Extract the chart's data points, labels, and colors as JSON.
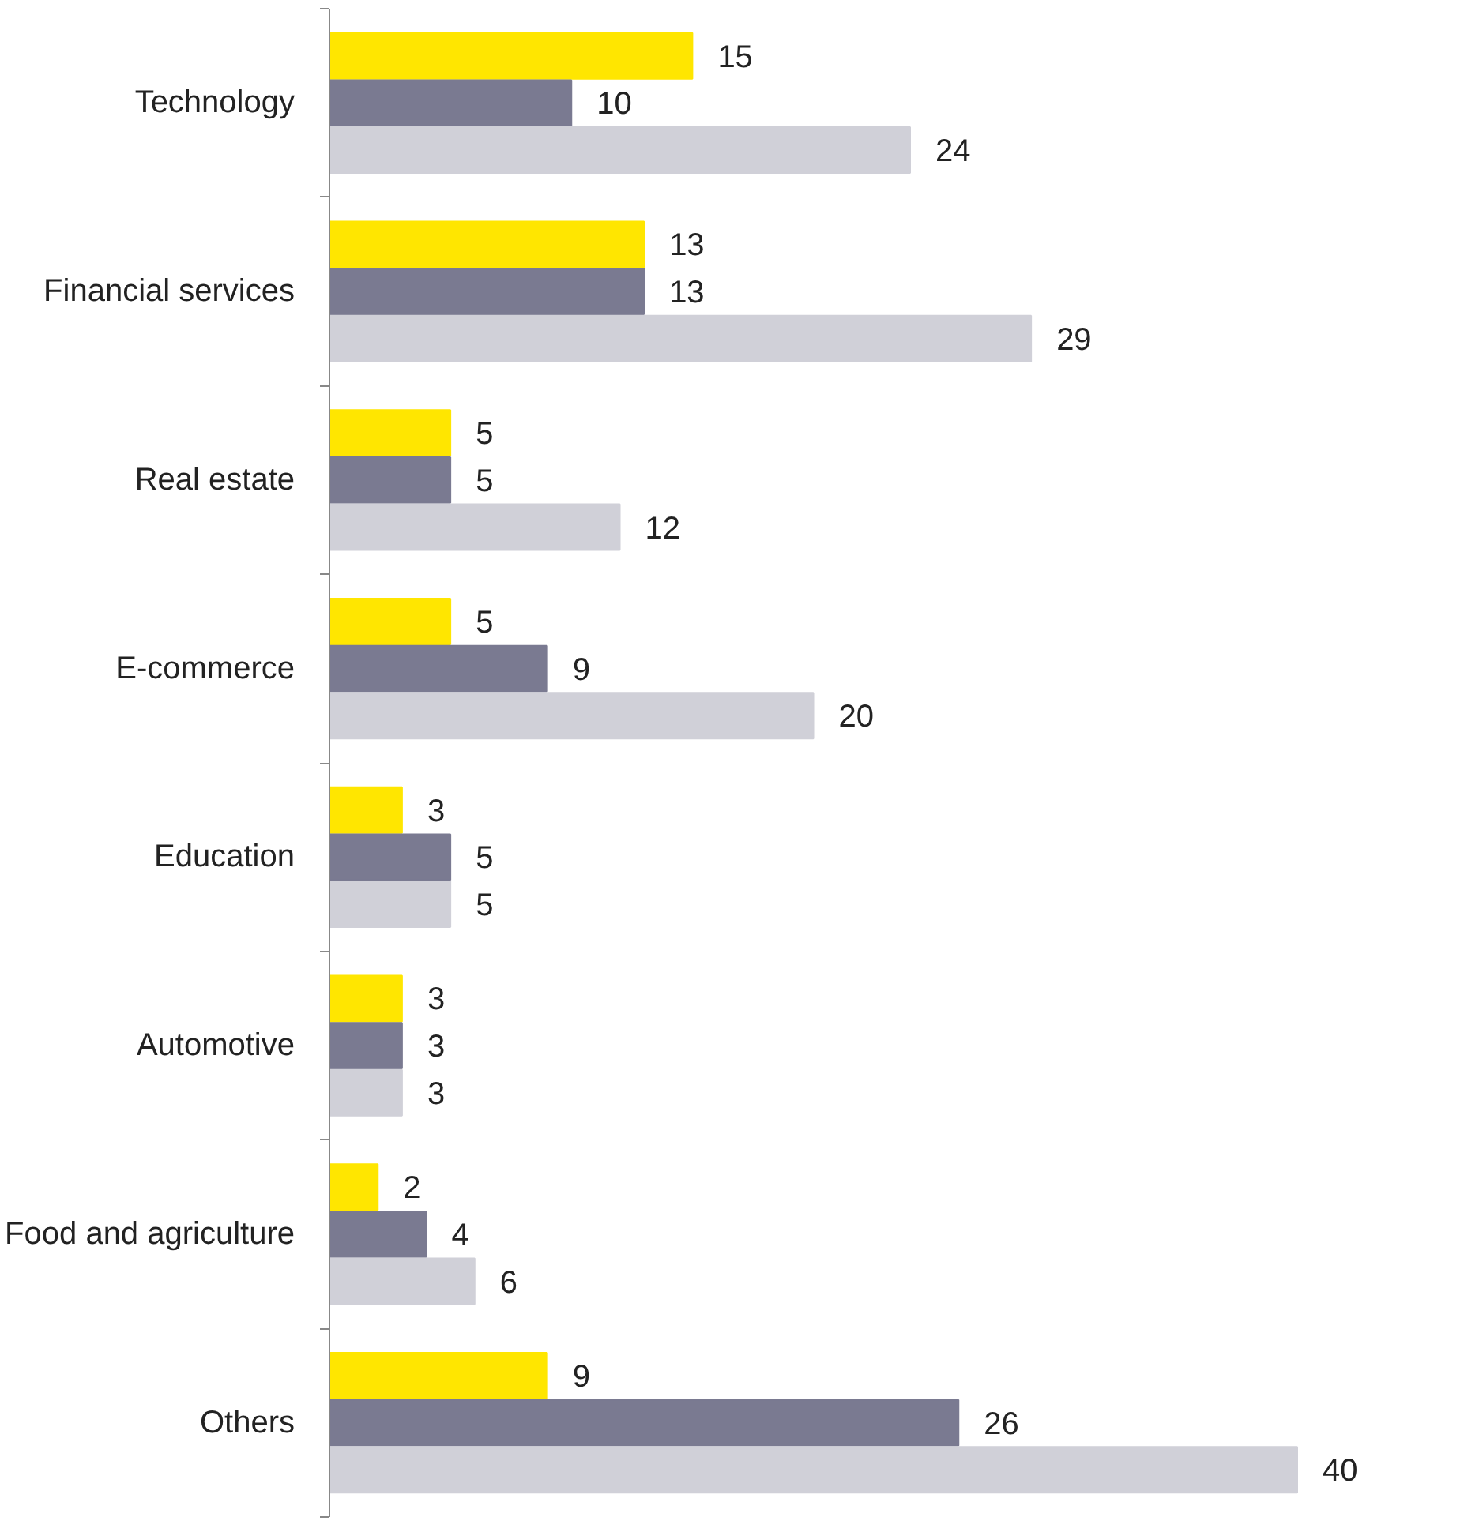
{
  "chart_data": {
    "type": "bar",
    "orientation": "horizontal",
    "data_labels": true,
    "categories": [
      "Technology",
      "Financial services",
      "Real estate",
      "E-commerce",
      "Education",
      "Automotive",
      "Food and agriculture",
      "Others"
    ],
    "series": [
      {
        "color": "#ffe600",
        "values": [
          15,
          13,
          5,
          5,
          3,
          3,
          2,
          9
        ]
      },
      {
        "color": "#7a7a91",
        "values": [
          10,
          13,
          5,
          9,
          5,
          3,
          4,
          26
        ]
      },
      {
        "color": "#d0d0d8",
        "values": [
          24,
          29,
          12,
          20,
          5,
          3,
          6,
          40
        ]
      }
    ]
  }
}
